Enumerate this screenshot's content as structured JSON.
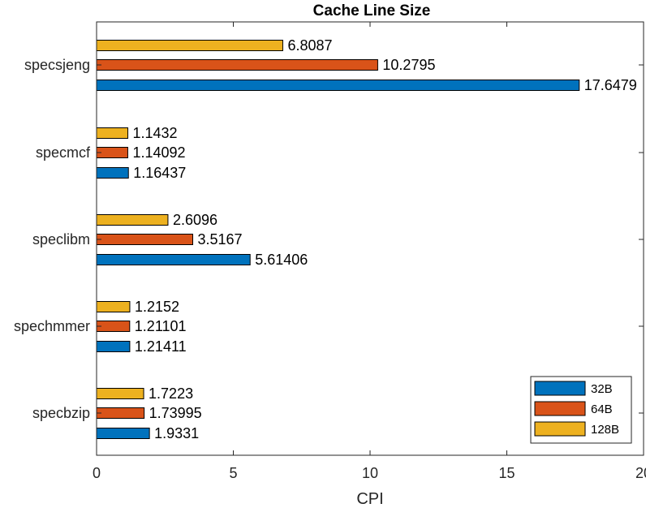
{
  "chart_data": {
    "type": "bar",
    "orientation": "horizontal",
    "title": "Cache Line Size",
    "xlabel": "CPI",
    "ylabel": "",
    "xlim": [
      0,
      20
    ],
    "xticks": [
      0,
      5,
      10,
      15,
      20
    ],
    "categories": [
      "specsjeng",
      "specmcf",
      "speclibm",
      "spechmmer",
      "specbzip"
    ],
    "series": [
      {
        "name": "32B",
        "color": "#0072BD",
        "values": [
          17.6479,
          1.16437,
          5.61406,
          1.21411,
          1.9331
        ],
        "labels": [
          "17.6479",
          "1.16437",
          "5.61406",
          "1.21411",
          "1.9331"
        ]
      },
      {
        "name": "64B",
        "color": "#D95319",
        "values": [
          10.2795,
          1.14092,
          3.5167,
          1.21101,
          1.73995
        ],
        "labels": [
          "10.2795",
          "1.14092",
          "3.5167",
          "1.21101",
          "1.73995"
        ]
      },
      {
        "name": "128B",
        "color": "#EDB120",
        "values": [
          6.8087,
          1.1432,
          2.6096,
          1.2152,
          1.7223
        ],
        "labels": [
          "6.8087",
          "1.1432",
          "2.6096",
          "1.2152",
          "1.7223"
        ]
      }
    ],
    "grid": false,
    "legend_position": "bottom-right"
  }
}
